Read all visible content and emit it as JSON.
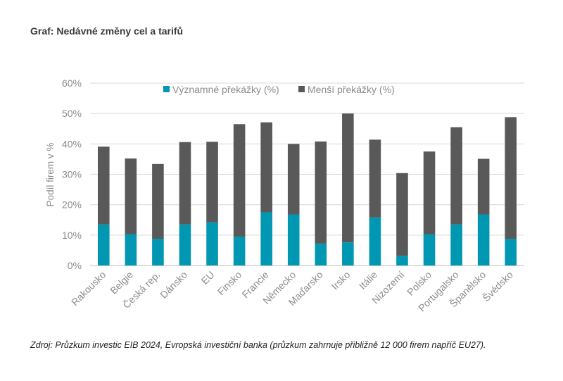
{
  "title": "Graf: Nedávné změny cel a tarifů",
  "source": "Zdroj: Průzkum investic EIB 2024, Evropská investiční banka (průzkum zahrnuje přibližně 12 000 firem napříč EU27).",
  "colors": {
    "significant": "#0097b2",
    "minor": "#595959",
    "grid": "#d9d9d9",
    "axis_text": "#8c8c8c"
  },
  "chart_data": {
    "type": "bar",
    "stacked": true,
    "categories": [
      "Rakousko",
      "Belgie",
      "Česká rep.",
      "Dánsko",
      "EU",
      "Finsko",
      "Francie",
      "Německo",
      "Maďarsko",
      "Irsko",
      "Itálie",
      "Nizozemí",
      "Polsko",
      "Portugalsko",
      "Španělsko",
      "Švédsko"
    ],
    "series": [
      {
        "name": "Významné překážky (%)",
        "values": [
          13.5,
          10.3,
          8.8,
          13.5,
          14.2,
          9.5,
          17.5,
          16.8,
          7.2,
          7.6,
          15.8,
          3.2,
          10.3,
          13.5,
          16.8,
          8.8
        ]
      },
      {
        "name": "Menší překážky (%)",
        "values": [
          25.6,
          24.9,
          24.6,
          27.1,
          26.5,
          37.0,
          29.6,
          23.2,
          33.6,
          42.4,
          25.6,
          27.2,
          27.2,
          32.0,
          18.3,
          40.0
        ]
      }
    ],
    "ylabel": "Podíl firem v %",
    "xlabel": "",
    "ylim": [
      0,
      60
    ],
    "yticks": [
      "0%",
      "10%",
      "20%",
      "30%",
      "40%",
      "50%",
      "60%"
    ],
    "grid": true,
    "legend_position": "top-center"
  }
}
